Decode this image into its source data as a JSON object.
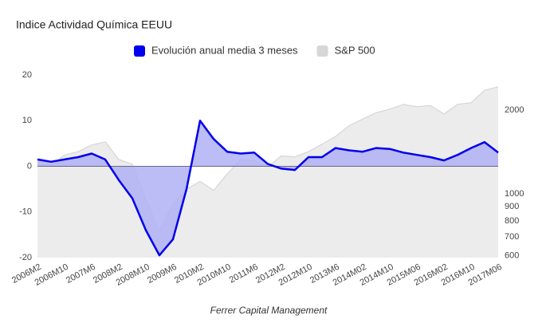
{
  "chart_data": {
    "type": "area",
    "title": "Indice Actividad Química EEUU",
    "footer": "Ferrer Capital Management",
    "categories": [
      "2006M2",
      null,
      "2006M10",
      null,
      "2007M6",
      null,
      "2008M2",
      null,
      "2008M10",
      null,
      "2009M6",
      null,
      "2010M2",
      null,
      "2010M10",
      null,
      "2011M6",
      null,
      "2012M2",
      null,
      "2012M10",
      null,
      "2013M6",
      null,
      "2014M02",
      null,
      "2014M10",
      null,
      "2015M06",
      null,
      "2016M02",
      null,
      "2016M10",
      null,
      "2017M06"
    ],
    "series": [
      {
        "name": "S&P 500",
        "color": "#d6d6d6",
        "axis": "y2",
        "values": [
          1280,
          1270,
          1380,
          1420,
          1500,
          1540,
          1330,
          1280,
          950,
          735,
          920,
          1040,
          1110,
          1030,
          1180,
          1330,
          1320,
          1250,
          1370,
          1360,
          1420,
          1510,
          1610,
          1760,
          1860,
          1960,
          2020,
          2100,
          2060,
          2080,
          1940,
          2100,
          2130,
          2360,
          2430
        ]
      },
      {
        "name": "Evolución anual media 3 meses",
        "color": "#0000ee",
        "values": [
          1.5,
          1,
          1.5,
          2,
          2.8,
          1.5,
          -3,
          -7,
          -14,
          -19.5,
          -16,
          -5,
          10,
          6,
          3.2,
          2.8,
          3,
          0.5,
          -0.5,
          -0.8,
          2,
          2,
          4,
          3.5,
          3.2,
          4,
          3.8,
          3,
          2.5,
          2,
          1.3,
          2.5,
          4,
          5.3,
          3
        ]
      }
    ],
    "ylim": [
      -20,
      20
    ],
    "yticks": [
      -20,
      -10,
      0,
      10,
      20
    ],
    "y2lim": [
      590,
      2680
    ],
    "y2ticks": [
      600,
      700,
      800,
      900,
      1000,
      2000
    ],
    "y2log": true
  }
}
